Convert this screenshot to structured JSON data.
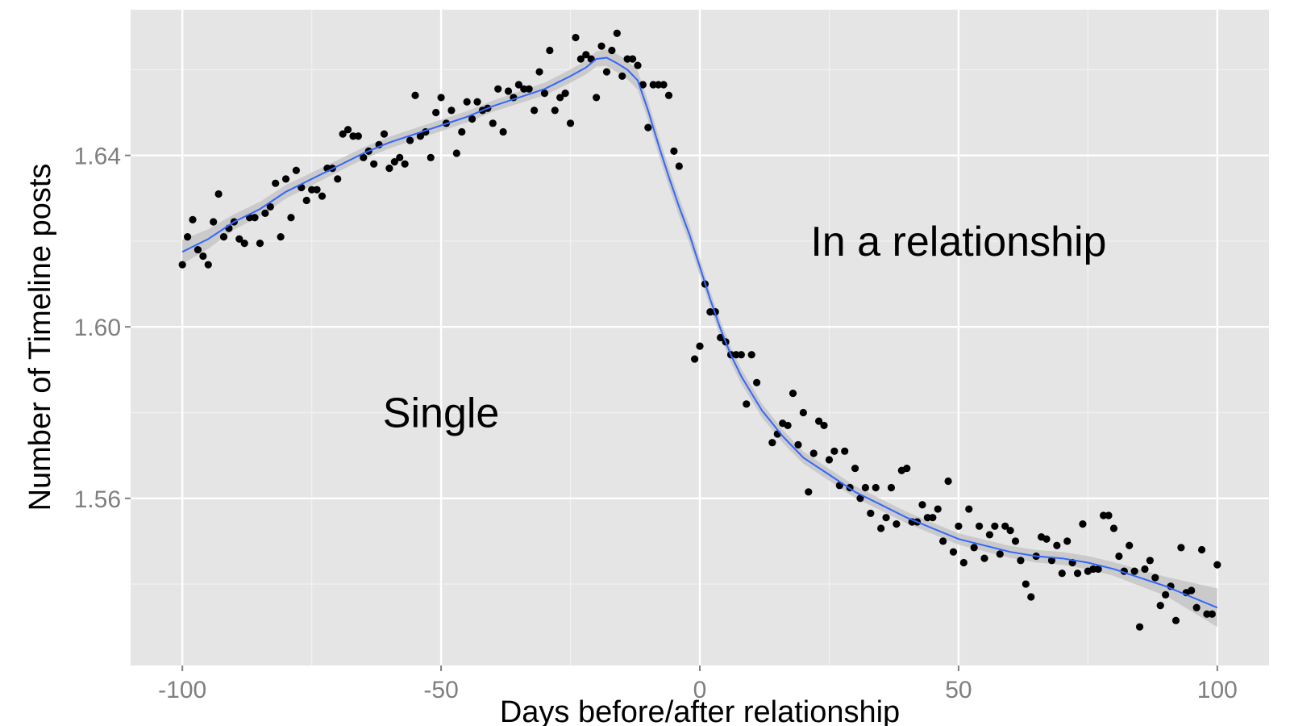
{
  "chart_data": {
    "type": "scatter",
    "title": "",
    "xlabel": "Days before/after relationship",
    "ylabel": "Number of Timeline posts",
    "xlim": [
      -110,
      110
    ],
    "ylim": [
      1.521,
      1.674
    ],
    "x_ticks": [
      -100,
      -50,
      0,
      50,
      100
    ],
    "x_tick_labels": [
      "-100",
      "-50",
      "0",
      "50",
      "100"
    ],
    "y_ticks": [
      1.56,
      1.6,
      1.64
    ],
    "y_tick_labels": [
      "1.56",
      "1.60",
      "1.64"
    ],
    "grid": true,
    "legend": "none",
    "colors": {
      "panel": "#e5e5e5",
      "grid": "#ffffff",
      "points": "#000000",
      "smooth_line": "#3366ff",
      "ribbon": "#c0c0c0"
    },
    "annotations": [
      {
        "text": "Single",
        "x": -50,
        "y": 1.58
      },
      {
        "text": "In a relationship",
        "x": 50,
        "y": 1.62
      }
    ],
    "series": [
      {
        "role": "points",
        "points": [
          [
            -100,
            1.6145
          ],
          [
            -99,
            1.621
          ],
          [
            -98,
            1.625
          ],
          [
            -97,
            1.618
          ],
          [
            -96,
            1.6165
          ],
          [
            -95,
            1.6145
          ],
          [
            -94,
            1.6245
          ],
          [
            -93,
            1.631
          ],
          [
            -92,
            1.621
          ],
          [
            -91,
            1.623
          ],
          [
            -90,
            1.6245
          ],
          [
            -89,
            1.6205
          ],
          [
            -88,
            1.6195
          ],
          [
            -87,
            1.6255
          ],
          [
            -86,
            1.6255
          ],
          [
            -85,
            1.6195
          ],
          [
            -84,
            1.6265
          ],
          [
            -83,
            1.628
          ],
          [
            -82,
            1.6335
          ],
          [
            -81,
            1.621
          ],
          [
            -80,
            1.6345
          ],
          [
            -79,
            1.6255
          ],
          [
            -78,
            1.6365
          ],
          [
            -77,
            1.6325
          ],
          [
            -76,
            1.6295
          ],
          [
            -75,
            1.632
          ],
          [
            -74,
            1.632
          ],
          [
            -73,
            1.6305
          ],
          [
            -72,
            1.637
          ],
          [
            -71,
            1.637
          ],
          [
            -70,
            1.6345
          ],
          [
            -69,
            1.645
          ],
          [
            -68,
            1.646
          ],
          [
            -67,
            1.6445
          ],
          [
            -66,
            1.6445
          ],
          [
            -65,
            1.6395
          ],
          [
            -64,
            1.641
          ],
          [
            -63,
            1.638
          ],
          [
            -62,
            1.6425
          ],
          [
            -61,
            1.645
          ],
          [
            -60,
            1.637
          ],
          [
            -59,
            1.6385
          ],
          [
            -58,
            1.6395
          ],
          [
            -57,
            1.638
          ],
          [
            -56,
            1.6435
          ],
          [
            -55,
            1.654
          ],
          [
            -54,
            1.6445
          ],
          [
            -53,
            1.6455
          ],
          [
            -52,
            1.6395
          ],
          [
            -51,
            1.65
          ],
          [
            -50,
            1.6535
          ],
          [
            -49,
            1.6475
          ],
          [
            -48,
            1.6505
          ],
          [
            -47,
            1.6405
          ],
          [
            -46,
            1.6455
          ],
          [
            -45,
            1.6525
          ],
          [
            -44,
            1.6485
          ],
          [
            -43,
            1.6525
          ],
          [
            -42,
            1.6505
          ],
          [
            -41,
            1.651
          ],
          [
            -40,
            1.6475
          ],
          [
            -39,
            1.6555
          ],
          [
            -38,
            1.6455
          ],
          [
            -37,
            1.655
          ],
          [
            -36,
            1.6535
          ],
          [
            -35,
            1.6565
          ],
          [
            -34,
            1.6555
          ],
          [
            -33,
            1.6555
          ],
          [
            -32,
            1.6505
          ],
          [
            -31,
            1.6595
          ],
          [
            -30,
            1.6545
          ],
          [
            -29,
            1.6645
          ],
          [
            -28,
            1.6505
          ],
          [
            -27,
            1.6535
          ],
          [
            -26,
            1.6545
          ],
          [
            -25,
            1.6475
          ],
          [
            -24,
            1.6675
          ],
          [
            -23,
            1.6625
          ],
          [
            -22,
            1.6635
          ],
          [
            -21,
            1.6625
          ],
          [
            -20,
            1.6535
          ],
          [
            -19,
            1.6655
          ],
          [
            -18,
            1.6595
          ],
          [
            -17,
            1.6645
          ],
          [
            -16,
            1.6685
          ],
          [
            -15,
            1.6585
          ],
          [
            -14,
            1.6625
          ],
          [
            -13,
            1.6625
          ],
          [
            -12,
            1.661
          ],
          [
            -11,
            1.6565
          ],
          [
            -10,
            1.6465
          ],
          [
            -9,
            1.6565
          ],
          [
            -8,
            1.6565
          ],
          [
            -7,
            1.6565
          ],
          [
            -6,
            1.654
          ],
          [
            -5,
            1.641
          ],
          [
            -4,
            1.6375
          ],
          [
            -1,
            1.5925
          ],
          [
            0,
            1.5955
          ],
          [
            1,
            1.61
          ],
          [
            2,
            1.6035
          ],
          [
            3,
            1.6035
          ],
          [
            4,
            1.5975
          ],
          [
            5,
            1.5965
          ],
          [
            6,
            1.5935
          ],
          [
            7,
            1.5935
          ],
          [
            8,
            1.5935
          ],
          [
            9,
            1.582
          ],
          [
            10,
            1.5935
          ],
          [
            11,
            1.587
          ],
          [
            14,
            1.573
          ],
          [
            15,
            1.575
          ],
          [
            16,
            1.5775
          ],
          [
            17,
            1.577
          ],
          [
            18,
            1.5845
          ],
          [
            19,
            1.5725
          ],
          [
            20,
            1.58
          ],
          [
            21,
            1.5615
          ],
          [
            22,
            1.5705
          ],
          [
            23,
            1.578
          ],
          [
            24,
            1.577
          ],
          [
            25,
            1.569
          ],
          [
            26,
            1.571
          ],
          [
            27,
            1.563
          ],
          [
            28,
            1.571
          ],
          [
            29,
            1.5625
          ],
          [
            30,
            1.567
          ],
          [
            31,
            1.56
          ],
          [
            32,
            1.5625
          ],
          [
            33,
            1.5565
          ],
          [
            34,
            1.5625
          ],
          [
            35,
            1.553
          ],
          [
            36,
            1.5555
          ],
          [
            37,
            1.5625
          ],
          [
            38,
            1.554
          ],
          [
            39,
            1.5665
          ],
          [
            40,
            1.567
          ],
          [
            41,
            1.5545
          ],
          [
            42,
            1.5545
          ],
          [
            43,
            1.5585
          ],
          [
            44,
            1.5555
          ],
          [
            45,
            1.5555
          ],
          [
            46,
            1.5575
          ],
          [
            47,
            1.55
          ],
          [
            48,
            1.564
          ],
          [
            49,
            1.5475
          ],
          [
            50,
            1.5535
          ],
          [
            51,
            1.545
          ],
          [
            52,
            1.5575
          ],
          [
            53,
            1.5485
          ],
          [
            54,
            1.5535
          ],
          [
            55,
            1.546
          ],
          [
            56,
            1.5515
          ],
          [
            57,
            1.5535
          ],
          [
            58,
            1.547
          ],
          [
            59,
            1.5535
          ],
          [
            60,
            1.5525
          ],
          [
            61,
            1.55
          ],
          [
            62,
            1.5455
          ],
          [
            63,
            1.54
          ],
          [
            64,
            1.537
          ],
          [
            65,
            1.5465
          ],
          [
            66,
            1.551
          ],
          [
            67,
            1.5505
          ],
          [
            68,
            1.5455
          ],
          [
            69,
            1.549
          ],
          [
            70,
            1.5425
          ],
          [
            71,
            1.55
          ],
          [
            72,
            1.545
          ],
          [
            73,
            1.5425
          ],
          [
            74,
            1.554
          ],
          [
            75,
            1.543
          ],
          [
            76,
            1.5435
          ],
          [
            77,
            1.5435
          ],
          [
            78,
            1.556
          ],
          [
            79,
            1.556
          ],
          [
            80,
            1.553
          ],
          [
            81,
            1.5465
          ],
          [
            82,
            1.543
          ],
          [
            83,
            1.549
          ],
          [
            84,
            1.543
          ],
          [
            85,
            1.53
          ],
          [
            86,
            1.5435
          ],
          [
            87,
            1.5455
          ],
          [
            88,
            1.5415
          ],
          [
            89,
            1.535
          ],
          [
            90,
            1.5375
          ],
          [
            91,
            1.5395
          ],
          [
            92,
            1.5315
          ],
          [
            93,
            1.5485
          ],
          [
            94,
            1.538
          ],
          [
            95,
            1.5385
          ],
          [
            96,
            1.5345
          ],
          [
            97,
            1.548
          ],
          [
            98,
            1.533
          ],
          [
            99,
            1.533
          ],
          [
            100,
            1.5445
          ]
        ]
      },
      {
        "role": "smooth",
        "points": [
          [
            -100,
            1.6175
          ],
          [
            -95,
            1.6205
          ],
          [
            -90,
            1.6245
          ],
          [
            -85,
            1.6275
          ],
          [
            -80,
            1.6315
          ],
          [
            -75,
            1.6345
          ],
          [
            -70,
            1.6375
          ],
          [
            -65,
            1.6405
          ],
          [
            -60,
            1.643
          ],
          [
            -55,
            1.645
          ],
          [
            -50,
            1.647
          ],
          [
            -45,
            1.649
          ],
          [
            -40,
            1.6515
          ],
          [
            -35,
            1.6535
          ],
          [
            -30,
            1.6555
          ],
          [
            -25,
            1.6585
          ],
          [
            -22,
            1.6605
          ],
          [
            -20,
            1.6625
          ],
          [
            -18,
            1.6628
          ],
          [
            -16,
            1.6615
          ],
          [
            -14,
            1.66
          ],
          [
            -12,
            1.6575
          ],
          [
            -10,
            1.6505
          ],
          [
            -8,
            1.6425
          ],
          [
            -6,
            1.635
          ],
          [
            -4,
            1.628
          ],
          [
            -2,
            1.6215
          ],
          [
            0,
            1.614
          ],
          [
            2,
            1.6065
          ],
          [
            4,
            1.5995
          ],
          [
            6,
            1.5935
          ],
          [
            8,
            1.5885
          ],
          [
            10,
            1.5845
          ],
          [
            12,
            1.5805
          ],
          [
            14,
            1.5775
          ],
          [
            16,
            1.5745
          ],
          [
            18,
            1.572
          ],
          [
            20,
            1.5695
          ],
          [
            25,
            1.5655
          ],
          [
            30,
            1.5615
          ],
          [
            35,
            1.5585
          ],
          [
            40,
            1.5555
          ],
          [
            45,
            1.553
          ],
          [
            50,
            1.5505
          ],
          [
            55,
            1.549
          ],
          [
            60,
            1.5475
          ],
          [
            65,
            1.5465
          ],
          [
            70,
            1.546
          ],
          [
            75,
            1.545
          ],
          [
            80,
            1.5435
          ],
          [
            85,
            1.5415
          ],
          [
            90,
            1.5395
          ],
          [
            95,
            1.537
          ],
          [
            100,
            1.5345
          ]
        ]
      }
    ],
    "ribbon_halfwidth": [
      [
        -100,
        0.0028
      ],
      [
        -90,
        0.0018
      ],
      [
        -70,
        0.0014
      ],
      [
        -40,
        0.0013
      ],
      [
        -22,
        0.0016
      ],
      [
        -15,
        0.0022
      ],
      [
        -5,
        0.0022
      ],
      [
        5,
        0.0018
      ],
      [
        20,
        0.0014
      ],
      [
        50,
        0.0013
      ],
      [
        80,
        0.0016
      ],
      [
        90,
        0.0022
      ],
      [
        100,
        0.0045
      ]
    ]
  }
}
